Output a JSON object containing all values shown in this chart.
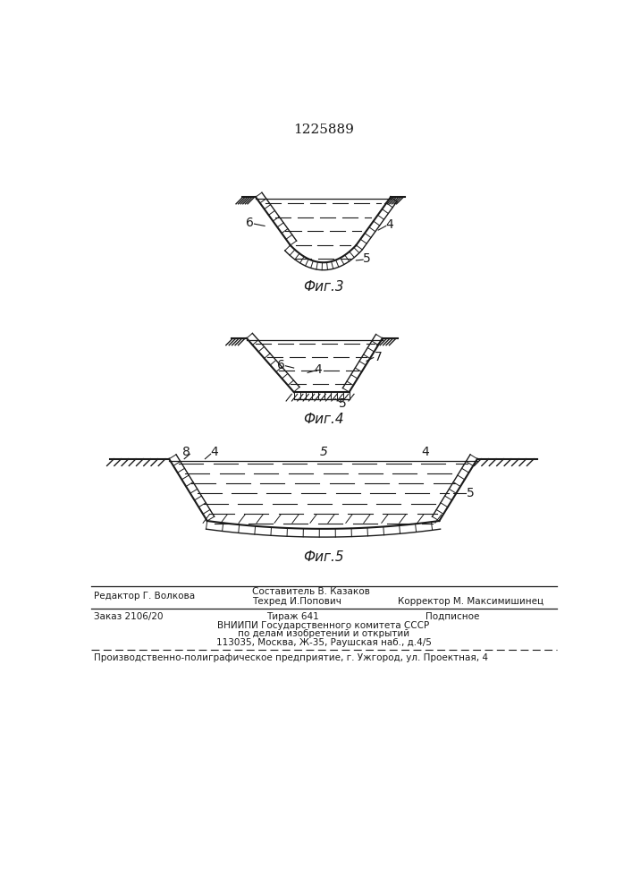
{
  "patent_number": "1225889",
  "fig3_label": "Фиг.3",
  "fig4_label": "Фиг.4",
  "fig5_label": "Фиг.5",
  "footer_editor": "Редактор Г. Волкова",
  "footer_composer": "Составитель В. Казаков",
  "footer_techred": "Техред И.Попович",
  "footer_corrector": "Корректор М. Максимишинец",
  "footer_order": "Заказ 2106/20",
  "footer_tirazh": "Тираж 641",
  "footer_podpis": "Подписное",
  "footer_vniip1": "ВНИИПИ Государственного комитета СССР",
  "footer_vniip2": "по делам изобретений и открытий",
  "footer_vniip3": "113035, Москва, Ж-35, Раушская наб., д.4/5",
  "footer_prod": "Производственно-полиграфическое предприятие, г. Ужгород, ул. Проектная, 4",
  "bg_color": "#ffffff",
  "line_color": "#1a1a1a"
}
